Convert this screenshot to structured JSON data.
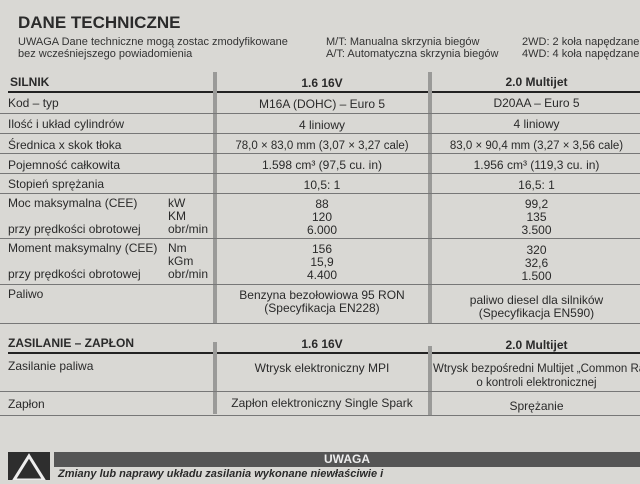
{
  "title": "DANE TECHNICZNE",
  "notes": {
    "uwaga_line1": "UWAGA Dane techniczne mogą zostac zmodyfikowane",
    "uwaga_line2": "bez wcześniejszego powiadomienia",
    "mt": "M/T: Manualna skrzynia biegów",
    "at": "A/T: Automatyczna skrzynia biegów",
    "wd2": "2WD: 2 koła napędzane",
    "wd4": "4WD: 4 koła napędzane"
  },
  "silnik": {
    "header": "SILNIK",
    "col1": "1.6 16V",
    "col2": "2.0 Multijet",
    "rows": [
      {
        "label": "Kod – typ",
        "v1": "M16A (DOHC) – Euro 5",
        "v2": "D20AA – Euro 5"
      },
      {
        "label": "Ilość i układ cylindrów",
        "v1": "4 liniowy",
        "v2": "4 liniowy"
      },
      {
        "label": "Średnica x skok tłoka",
        "v1": "78,0 × 83,0 mm (3,07 × 3,27 cale)",
        "v2": "83,0 × 90,4 mm (3,27 × 3,56 cale)"
      },
      {
        "label": "Pojemność całkowita",
        "v1": "1.598 cm³ (97,5 cu. in)",
        "v2": "1.956 cm³ (119,3 cu. in)"
      },
      {
        "label": "Stopień sprężania",
        "v1": "10,5: 1",
        "v2": "16,5: 1"
      }
    ],
    "moc": {
      "label": "Moc maksymalna (CEE)",
      "label2": "przy prędkości obrotowej",
      "units": [
        "kW",
        "KM",
        "obr/min"
      ],
      "v1": [
        "88",
        "120",
        "6.000"
      ],
      "v2": [
        "99,2",
        "135",
        "3.500"
      ]
    },
    "moment": {
      "label": "Moment maksymalny (CEE)",
      "label2": "przy prędkości obrotowej",
      "units": [
        "Nm",
        "kGm",
        "obr/min"
      ],
      "v1": [
        "156",
        "15,9",
        "4.400"
      ],
      "v2": [
        "320",
        "32,6",
        "1.500"
      ]
    },
    "paliwo": {
      "label": "Paliwo",
      "v1": [
        "Benzyna bezołowiowa 95 RON",
        "(Specyfikacja EN228)"
      ],
      "v2": [
        "paliwo diesel dla silników",
        "(Specyfikacja EN590)"
      ]
    }
  },
  "zasilanie": {
    "header": "ZASILANIE – ZAPŁON",
    "col1": "1.6 16V",
    "col2": "2.0 Multijet",
    "rows": [
      {
        "label": "Zasilanie paliwa",
        "v1": "Wtrysk elektroniczny MPI",
        "v2": [
          "Wtrysk bezpośredni Multijet „Common Rai",
          "o kontroli elektronicznej"
        ]
      },
      {
        "label": "Zapłon",
        "v1": "Zapłon elektroniczny Single Spark",
        "v2": "Sprężanie"
      }
    ]
  },
  "warning": {
    "title": "UWAGA",
    "text": "Zmiany lub naprawy układu zasilania wykonane niewłaściwie i",
    "icon": "warning-triangle-icon"
  }
}
